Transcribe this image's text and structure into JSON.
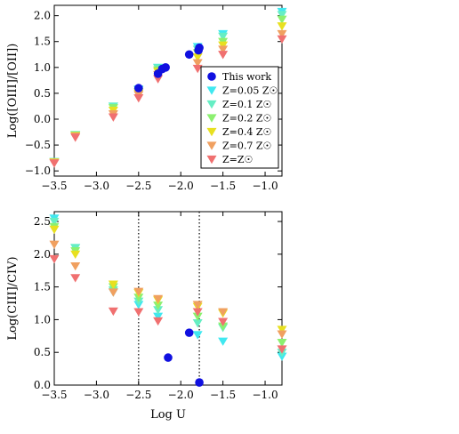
{
  "chart_data": [
    {
      "type": "scatter",
      "xlabel": "",
      "ylabel": "Log([OIII]/[OII])",
      "xlim": [
        -3.5,
        -0.8
      ],
      "ylim": [
        -1.1,
        2.2
      ],
      "xticks": [
        -3.5,
        -3.0,
        -2.5,
        -2.0,
        -1.5,
        -1.0
      ],
      "xtick_labels": [
        "−3.5",
        "−3.0",
        "−2.5",
        "−2.0",
        "−1.5",
        "−1.0"
      ],
      "yticks": [
        -1.0,
        -0.5,
        0.0,
        0.5,
        1.0,
        1.5,
        2.0
      ],
      "ytick_labels": [
        "−1.0",
        "−0.5",
        "0.0",
        "0.5",
        "1.0",
        "1.5",
        "2.0"
      ],
      "grid": false,
      "legend_position": "bottom-right",
      "series": [
        {
          "name": "This work",
          "marker": "circle",
          "color": "#1010e0",
          "points": [
            [
              -2.5,
              0.6
            ],
            [
              -2.27,
              0.88
            ],
            [
              -2.22,
              0.97
            ],
            [
              -2.18,
              1.0
            ],
            [
              -1.9,
              1.25
            ],
            [
              -1.79,
              1.33
            ],
            [
              -1.78,
              1.38
            ]
          ]
        },
        {
          "name": "Z=0.05 Z☉",
          "marker": "triangle-down",
          "color": "#40e8f0",
          "points": [
            [
              -3.5,
              -0.82
            ],
            [
              -3.25,
              -0.3
            ],
            [
              -2.8,
              0.25
            ],
            [
              -2.5,
              0.58
            ],
            [
              -2.27,
              1.0
            ],
            [
              -1.8,
              1.4
            ],
            [
              -1.5,
              1.65
            ],
            [
              -0.8,
              2.08
            ]
          ]
        },
        {
          "name": "Z=0.1 Z☉",
          "marker": "triangle-down",
          "color": "#66eec4",
          "points": [
            [
              -3.5,
              -0.82
            ],
            [
              -3.25,
              -0.3
            ],
            [
              -2.8,
              0.25
            ],
            [
              -2.5,
              0.56
            ],
            [
              -2.27,
              0.99
            ],
            [
              -1.8,
              1.35
            ],
            [
              -1.5,
              1.6
            ],
            [
              -0.8,
              2.02
            ]
          ]
        },
        {
          "name": "Z=0.2 Z☉",
          "marker": "triangle-down",
          "color": "#8cf070",
          "points": [
            [
              -3.5,
              -0.83
            ],
            [
              -3.25,
              -0.31
            ],
            [
              -2.8,
              0.22
            ],
            [
              -2.5,
              0.53
            ],
            [
              -2.27,
              0.95
            ],
            [
              -1.8,
              1.28
            ],
            [
              -1.5,
              1.5
            ],
            [
              -0.8,
              1.93
            ]
          ]
        },
        {
          "name": "Z=0.4 Z☉",
          "marker": "triangle-down",
          "color": "#e8e020",
          "points": [
            [
              -3.5,
              -0.83
            ],
            [
              -3.25,
              -0.32
            ],
            [
              -2.8,
              0.17
            ],
            [
              -2.5,
              0.5
            ],
            [
              -2.27,
              0.92
            ],
            [
              -1.8,
              1.2
            ],
            [
              -1.5,
              1.43
            ],
            [
              -0.8,
              1.8
            ]
          ]
        },
        {
          "name": "Z=0.7 Z☉",
          "marker": "triangle-down",
          "color": "#f0a060",
          "points": [
            [
              -3.5,
              -0.84
            ],
            [
              -3.25,
              -0.33
            ],
            [
              -2.8,
              0.1
            ],
            [
              -2.5,
              0.47
            ],
            [
              -2.27,
              0.86
            ],
            [
              -1.8,
              1.09
            ],
            [
              -1.5,
              1.35
            ],
            [
              -0.8,
              1.65
            ]
          ]
        },
        {
          "name": "Z=Z☉",
          "marker": "triangle-down",
          "color": "#f07070",
          "points": [
            [
              -3.5,
              -0.85
            ],
            [
              -3.25,
              -0.35
            ],
            [
              -2.8,
              0.04
            ],
            [
              -2.5,
              0.41
            ],
            [
              -2.27,
              0.78
            ],
            [
              -1.8,
              0.98
            ],
            [
              -1.5,
              1.25
            ],
            [
              -0.8,
              1.55
            ]
          ]
        }
      ]
    },
    {
      "type": "scatter",
      "xlabel": "Log U",
      "ylabel": "Log(CIII]/CIV)",
      "xlim": [
        -3.5,
        -0.8
      ],
      "ylim": [
        0.0,
        2.65
      ],
      "xticks": [
        -3.5,
        -3.0,
        -2.5,
        -2.0,
        -1.5,
        -1.0
      ],
      "xtick_labels": [
        "−3.5",
        "−3.0",
        "−2.5",
        "−2.0",
        "−1.5",
        "−1.0"
      ],
      "yticks": [
        0.0,
        0.5,
        1.0,
        1.5,
        2.0,
        2.5
      ],
      "ytick_labels": [
        "0.0",
        "0.5",
        "1.0",
        "1.5",
        "2.0",
        "2.5"
      ],
      "grid": false,
      "vlines": [
        -2.5,
        -1.78
      ],
      "series": [
        {
          "name": "This work",
          "marker": "circle",
          "color": "#1010e0",
          "points": [
            [
              -2.15,
              0.42
            ],
            [
              -1.9,
              0.8
            ],
            [
              -1.78,
              0.04
            ]
          ]
        },
        {
          "name": "Z=0.05 Z☉",
          "marker": "triangle-down",
          "color": "#40e8f0",
          "points": [
            [
              -3.5,
              2.55
            ],
            [
              -3.25,
              2.1
            ],
            [
              -2.8,
              1.42
            ],
            [
              -2.5,
              1.23
            ],
            [
              -2.27,
              1.05
            ],
            [
              -1.8,
              0.77
            ],
            [
              -1.5,
              0.67
            ],
            [
              -0.8,
              0.44
            ]
          ]
        },
        {
          "name": "Z=0.1 Z☉",
          "marker": "triangle-down",
          "color": "#66eec4",
          "points": [
            [
              -3.5,
              2.5
            ],
            [
              -3.25,
              2.1
            ],
            [
              -2.8,
              1.45
            ],
            [
              -2.5,
              1.28
            ],
            [
              -2.27,
              1.15
            ],
            [
              -1.8,
              0.95
            ],
            [
              -1.5,
              0.88
            ],
            [
              -0.8,
              0.5
            ]
          ]
        },
        {
          "name": "Z=0.2 Z☉",
          "marker": "triangle-down",
          "color": "#8cf070",
          "points": [
            [
              -3.5,
              2.42
            ],
            [
              -3.25,
              2.05
            ],
            [
              -2.8,
              1.5
            ],
            [
              -2.5,
              1.34
            ],
            [
              -2.27,
              1.22
            ],
            [
              -1.8,
              1.05
            ],
            [
              -1.5,
              0.9
            ],
            [
              -0.8,
              0.65
            ]
          ]
        },
        {
          "name": "Z=0.4 Z☉",
          "marker": "triangle-down",
          "color": "#e8e020",
          "points": [
            [
              -3.5,
              2.38
            ],
            [
              -3.25,
              2.0
            ],
            [
              -2.8,
              1.54
            ],
            [
              -2.5,
              1.41
            ],
            [
              -2.27,
              1.3
            ],
            [
              -1.8,
              1.2
            ],
            [
              -1.5,
              1.1
            ],
            [
              -0.8,
              0.85
            ]
          ]
        },
        {
          "name": "Z=0.7 Z☉",
          "marker": "triangle-down",
          "color": "#f0a060",
          "points": [
            [
              -3.5,
              2.15
            ],
            [
              -3.25,
              1.82
            ],
            [
              -2.8,
              1.42
            ],
            [
              -2.5,
              1.43
            ],
            [
              -2.27,
              1.32
            ],
            [
              -1.8,
              1.23
            ],
            [
              -1.5,
              1.12
            ],
            [
              -0.8,
              0.78
            ]
          ]
        },
        {
          "name": "Z=Z☉",
          "marker": "triangle-down",
          "color": "#f07070",
          "points": [
            [
              -3.5,
              1.93
            ],
            [
              -3.25,
              1.64
            ],
            [
              -2.8,
              1.13
            ],
            [
              -2.5,
              1.12
            ],
            [
              -2.27,
              0.98
            ],
            [
              -1.8,
              1.12
            ],
            [
              -1.5,
              0.97
            ],
            [
              -0.8,
              0.55
            ]
          ]
        }
      ]
    }
  ]
}
